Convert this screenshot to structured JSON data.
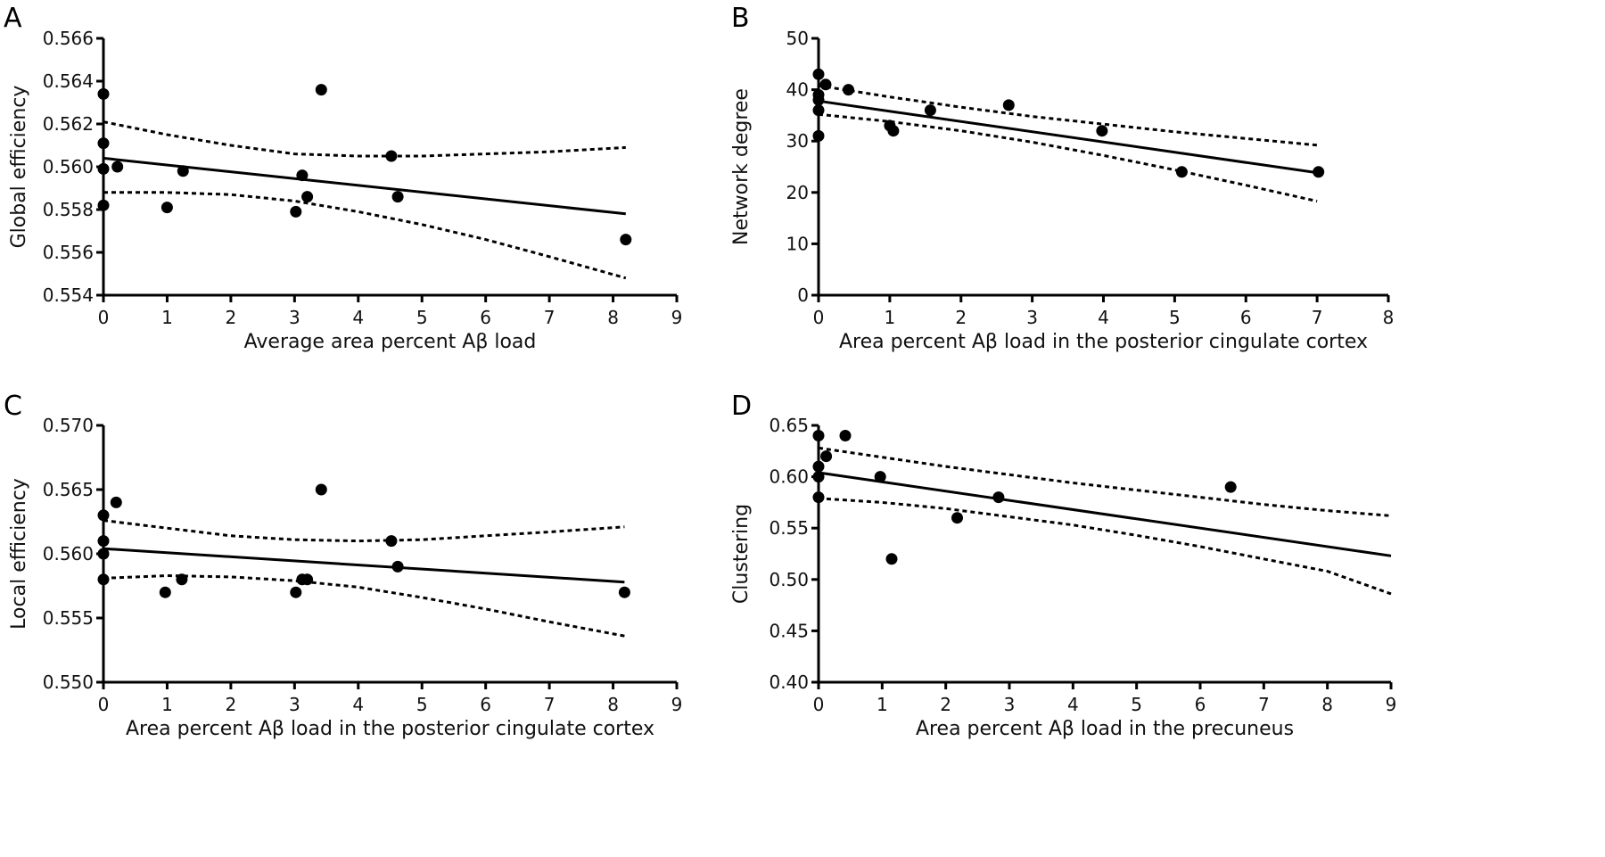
{
  "chart_data": [
    {
      "id": "A",
      "type": "scatter",
      "panel_label": "A",
      "title": "",
      "xlabel": "Average area percent Aβ load",
      "ylabel": "Global efficiency",
      "xlim": [
        0,
        9
      ],
      "ylim": [
        0.554,
        0.566
      ],
      "xticks": [
        0,
        1,
        2,
        3,
        4,
        5,
        6,
        7,
        8,
        9
      ],
      "yticks": [
        "0.554",
        "0.556",
        "0.558",
        "0.560",
        "0.562",
        "0.564",
        "0.566"
      ],
      "ytick_values": [
        0.554,
        0.556,
        0.558,
        0.56,
        0.562,
        0.564,
        0.566
      ],
      "points": [
        [
          0,
          0.5634
        ],
        [
          0,
          0.5611
        ],
        [
          0,
          0.5599
        ],
        [
          0,
          0.5582
        ],
        [
          0.22,
          0.56
        ],
        [
          1.0,
          0.5581
        ],
        [
          1.25,
          0.5598
        ],
        [
          3.02,
          0.5579
        ],
        [
          3.12,
          0.5596
        ],
        [
          3.2,
          0.5586
        ],
        [
          3.42,
          0.5636
        ],
        [
          4.52,
          0.5605
        ],
        [
          4.62,
          0.5586
        ],
        [
          8.2,
          0.5566
        ]
      ],
      "fit_line": [
        [
          0,
          0.5604
        ],
        [
          8.2,
          0.5578
        ]
      ],
      "ci_upper": [
        [
          0,
          0.5621
        ],
        [
          1,
          0.5615
        ],
        [
          2,
          0.561
        ],
        [
          3,
          0.5606
        ],
        [
          4,
          0.5605
        ],
        [
          5,
          0.5605
        ],
        [
          6,
          0.5606
        ],
        [
          7,
          0.5607
        ],
        [
          8.2,
          0.5609
        ]
      ],
      "ci_lower": [
        [
          0,
          0.5588
        ],
        [
          1,
          0.5588
        ],
        [
          2,
          0.5587
        ],
        [
          3,
          0.5584
        ],
        [
          4,
          0.5579
        ],
        [
          5,
          0.5573
        ],
        [
          6,
          0.5566
        ],
        [
          7,
          0.5558
        ],
        [
          8.2,
          0.5548
        ]
      ]
    },
    {
      "id": "B",
      "type": "scatter",
      "panel_label": "B",
      "title": "",
      "xlabel": "Area percent Aβ load in the posterior cingulate cortex",
      "ylabel": "Network degree",
      "xlim": [
        0,
        8
      ],
      "ylim": [
        0,
        50
      ],
      "xticks": [
        0,
        1,
        2,
        3,
        4,
        5,
        6,
        7,
        8
      ],
      "yticks": [
        "0",
        "10",
        "20",
        "30",
        "40",
        "50"
      ],
      "ytick_values": [
        0,
        10,
        20,
        30,
        40,
        50
      ],
      "points": [
        [
          0,
          43
        ],
        [
          0,
          39
        ],
        [
          0,
          38
        ],
        [
          0,
          36
        ],
        [
          0,
          31
        ],
        [
          0.1,
          41
        ],
        [
          0.42,
          40
        ],
        [
          1.0,
          33
        ],
        [
          1.05,
          32
        ],
        [
          1.57,
          36
        ],
        [
          2.67,
          37
        ],
        [
          3.98,
          32
        ],
        [
          5.1,
          24
        ],
        [
          7.02,
          24
        ]
      ],
      "fit_line": [
        [
          0,
          37.8
        ],
        [
          7.02,
          23.8
        ]
      ],
      "ci_upper": [
        [
          0,
          40.8
        ],
        [
          1,
          38.6
        ],
        [
          2,
          36.6
        ],
        [
          3,
          34.8
        ],
        [
          4,
          33.3
        ],
        [
          5,
          31.8
        ],
        [
          6,
          30.5
        ],
        [
          7,
          29.2
        ]
      ],
      "ci_lower": [
        [
          0,
          35.2
        ],
        [
          1,
          33.8
        ],
        [
          2,
          32.0
        ],
        [
          3,
          29.8
        ],
        [
          4,
          27.2
        ],
        [
          5,
          24.4
        ],
        [
          6,
          21.4
        ],
        [
          7,
          18.3
        ]
      ]
    },
    {
      "id": "C",
      "type": "scatter",
      "panel_label": "C",
      "title": "",
      "xlabel": "Area percent Aβ load in the posterior cingulate cortex",
      "ylabel": "Local efficiency",
      "xlim": [
        0,
        9
      ],
      "ylim": [
        0.55,
        0.57
      ],
      "xticks": [
        0,
        1,
        2,
        3,
        4,
        5,
        6,
        7,
        8,
        9
      ],
      "yticks": [
        "0.550",
        "0.555",
        "0.560",
        "0.565",
        "0.570"
      ],
      "ytick_values": [
        0.55,
        0.555,
        0.56,
        0.565,
        0.57
      ],
      "points": [
        [
          0,
          0.563
        ],
        [
          0,
          0.561
        ],
        [
          0,
          0.56
        ],
        [
          0,
          0.558
        ],
        [
          0.2,
          0.564
        ],
        [
          0.97,
          0.557
        ],
        [
          1.23,
          0.558
        ],
        [
          3.02,
          0.557
        ],
        [
          3.12,
          0.558
        ],
        [
          3.2,
          0.558
        ],
        [
          3.42,
          0.565
        ],
        [
          4.52,
          0.561
        ],
        [
          4.62,
          0.559
        ],
        [
          8.18,
          0.557
        ]
      ],
      "fit_line": [
        [
          0,
          0.5604
        ],
        [
          8.18,
          0.5578
        ]
      ],
      "ci_upper": [
        [
          0,
          0.5626
        ],
        [
          1,
          0.562
        ],
        [
          2,
          0.5614
        ],
        [
          3,
          0.5611
        ],
        [
          4,
          0.561
        ],
        [
          5,
          0.5611
        ],
        [
          6,
          0.5614
        ],
        [
          7,
          0.5617
        ],
        [
          8.18,
          0.5621
        ]
      ],
      "ci_lower": [
        [
          0,
          0.5581
        ],
        [
          1,
          0.5583
        ],
        [
          2,
          0.5582
        ],
        [
          3,
          0.5579
        ],
        [
          4,
          0.5574
        ],
        [
          5,
          0.5566
        ],
        [
          6,
          0.5557
        ],
        [
          7,
          0.5547
        ],
        [
          8.18,
          0.5536
        ]
      ]
    },
    {
      "id": "D",
      "type": "scatter",
      "panel_label": "D",
      "title": "",
      "xlabel": "Area percent Aβ load in the precuneus",
      "ylabel": "Clustering",
      "xlim": [
        0,
        9
      ],
      "ylim": [
        0.4,
        0.65
      ],
      "xticks": [
        0,
        1,
        2,
        3,
        4,
        5,
        6,
        7,
        8,
        9
      ],
      "yticks": [
        "0.40",
        "0.45",
        "0.50",
        "0.55",
        "0.60",
        "0.65"
      ],
      "ytick_values": [
        0.4,
        0.45,
        0.5,
        0.55,
        0.6,
        0.65
      ],
      "points": [
        [
          0,
          0.64
        ],
        [
          0,
          0.61
        ],
        [
          0,
          0.6
        ],
        [
          0,
          0.58
        ],
        [
          0.12,
          0.62
        ],
        [
          0.42,
          0.64
        ],
        [
          0.97,
          0.6
        ],
        [
          1.15,
          0.52
        ],
        [
          2.18,
          0.56
        ],
        [
          2.83,
          0.58
        ],
        [
          6.48,
          0.59
        ]
      ],
      "fit_line": [
        [
          0,
          0.604
        ],
        [
          9,
          0.523
        ]
      ],
      "ci_upper": [
        [
          0,
          0.628
        ],
        [
          1,
          0.619
        ],
        [
          2,
          0.61
        ],
        [
          3,
          0.602
        ],
        [
          4,
          0.594
        ],
        [
          5,
          0.587
        ],
        [
          6,
          0.58
        ],
        [
          7,
          0.573
        ],
        [
          8,
          0.567
        ],
        [
          9,
          0.562
        ]
      ],
      "ci_lower": [
        [
          0,
          0.579
        ],
        [
          1,
          0.575
        ],
        [
          2,
          0.569
        ],
        [
          3,
          0.561
        ],
        [
          4,
          0.553
        ],
        [
          5,
          0.543
        ],
        [
          6,
          0.532
        ],
        [
          7,
          0.52
        ],
        [
          8,
          0.508
        ],
        [
          9,
          0.486
        ]
      ]
    }
  ]
}
